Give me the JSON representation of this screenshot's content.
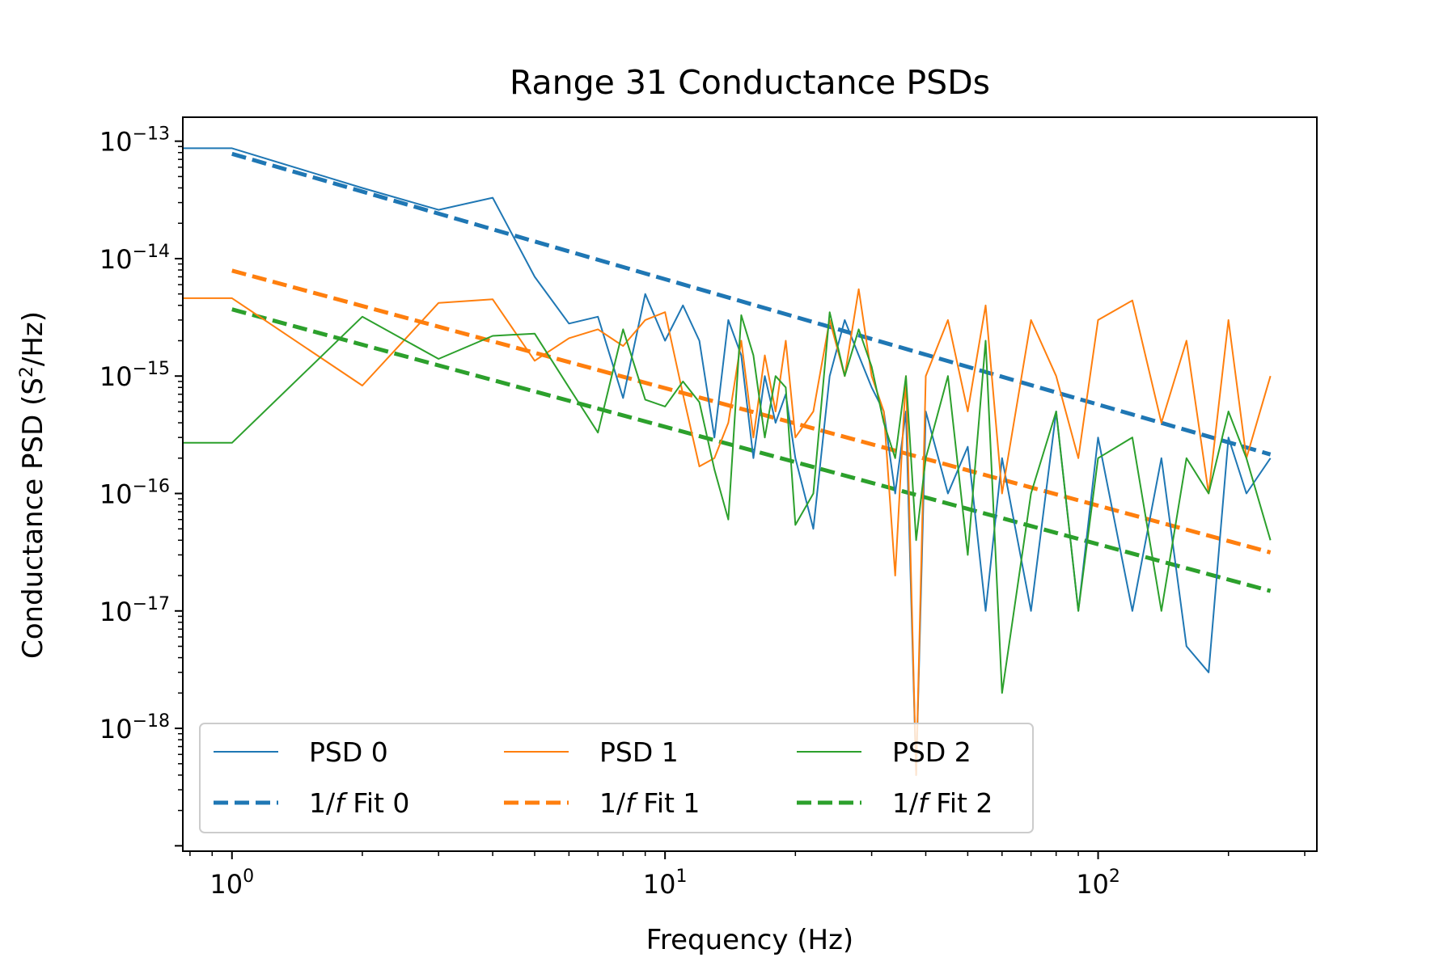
{
  "chart_data": {
    "type": "line",
    "title": "Range 31 Conductance PSDs",
    "xlabel": "Frequency (Hz)",
    "ylabel_base": "Conductance PSD (S",
    "ylabel_sup": "2",
    "ylabel_tail": "/Hz)",
    "x_scale": "log",
    "y_scale": "log",
    "xlim": [
      0.77,
      320
    ],
    "ylim": [
      9e-20,
      1.6e-13
    ],
    "x_ticks": [
      {
        "base": "10",
        "exp": "0",
        "value": 1
      },
      {
        "base": "10",
        "exp": "1",
        "value": 10
      },
      {
        "base": "10",
        "exp": "2",
        "value": 100
      }
    ],
    "y_ticks": [
      {
        "base": "10",
        "exp": "−13",
        "value": 1e-13
      },
      {
        "base": "10",
        "exp": "−14",
        "value": 1e-14
      },
      {
        "base": "10",
        "exp": "−15",
        "value": 1e-15
      },
      {
        "base": "10",
        "exp": "−16",
        "value": 1e-16
      },
      {
        "base": "10",
        "exp": "−17",
        "value": 1e-17
      },
      {
        "base": "10",
        "exp": "−18",
        "value": 1e-18
      }
    ],
    "legend": {
      "placement": "lower-left",
      "columns": 3
    },
    "series": [
      {
        "name": "PSD 0",
        "style": "solid",
        "color": "#1f77b4",
        "x": [
          0.77,
          1,
          2,
          3,
          4,
          5,
          6,
          7,
          8,
          9,
          10,
          11,
          12,
          13,
          14,
          15,
          16,
          17,
          18,
          19,
          20,
          22,
          24,
          26,
          28,
          30,
          32,
          34,
          36,
          38,
          40,
          45,
          50,
          55,
          60,
          70,
          80,
          90,
          100,
          120,
          140,
          160,
          180,
          200,
          220,
          250
        ],
        "y": [
          8.7e-14,
          8.7e-14,
          4e-14,
          2.6e-14,
          3.3e-14,
          7e-15,
          2.8e-15,
          3.2e-15,
          6.5e-16,
          5e-15,
          2e-15,
          4e-15,
          2e-15,
          3e-16,
          3e-15,
          1.5e-15,
          2e-16,
          1e-15,
          4e-16,
          7e-16,
          2e-16,
          5e-17,
          1e-15,
          3e-15,
          1.5e-15,
          8e-16,
          5e-16,
          1e-16,
          5e-16,
          4e-19,
          5e-16,
          1e-16,
          2.5e-16,
          1e-17,
          2e-16,
          1e-17,
          5e-16,
          1e-17,
          3e-16,
          1e-17,
          2e-16,
          5e-18,
          3e-18,
          3e-16,
          1e-16,
          2e-16
        ]
      },
      {
        "name": "PSD 1",
        "style": "solid",
        "color": "#ff7f0e",
        "x": [
          0.77,
          1,
          2,
          3,
          4,
          5,
          6,
          7,
          8,
          9,
          10,
          11,
          12,
          13,
          14,
          15,
          16,
          17,
          18,
          19,
          20,
          22,
          24,
          26,
          28,
          30,
          32,
          34,
          36,
          38,
          40,
          45,
          50,
          55,
          60,
          70,
          80,
          90,
          100,
          120,
          140,
          160,
          180,
          200,
          220,
          250
        ],
        "y": [
          4.6e-15,
          4.6e-15,
          8.3e-16,
          4.2e-15,
          4.5e-15,
          1.35e-15,
          2.1e-15,
          2.5e-15,
          1.8e-15,
          3e-15,
          3.5e-15,
          7e-16,
          1.7e-16,
          2e-16,
          4e-16,
          2e-15,
          3e-16,
          1.5e-15,
          5e-16,
          2e-15,
          3e-16,
          5e-16,
          3e-15,
          1e-15,
          5.5e-15,
          1e-15,
          5e-16,
          2e-17,
          1e-15,
          4e-19,
          1e-15,
          3e-15,
          5e-16,
          4e-15,
          1e-16,
          3e-15,
          1e-15,
          2e-16,
          3e-15,
          4.4e-15,
          4e-16,
          2e-15,
          1e-16,
          3e-15,
          2e-16,
          1e-15
        ]
      },
      {
        "name": "PSD 2",
        "style": "solid",
        "color": "#2ca02c",
        "x": [
          0.77,
          1,
          2,
          3,
          4,
          5,
          6,
          7,
          8,
          9,
          10,
          11,
          12,
          13,
          14,
          15,
          16,
          17,
          18,
          19,
          20,
          22,
          24,
          26,
          28,
          30,
          32,
          34,
          36,
          38,
          40,
          45,
          50,
          55,
          60,
          70,
          80,
          90,
          100,
          120,
          140,
          160,
          180,
          200,
          220,
          250
        ],
        "y": [
          2.7e-16,
          2.7e-16,
          3.2e-15,
          1.4e-15,
          2.2e-15,
          2.3e-15,
          8e-16,
          3.3e-16,
          2.5e-15,
          6.3e-16,
          5.5e-16,
          9e-16,
          6e-16,
          1.6e-16,
          6e-17,
          3.3e-15,
          1.5e-15,
          3e-16,
          1e-15,
          8e-16,
          5.4e-17,
          1e-16,
          3.5e-15,
          1e-15,
          2.5e-15,
          1.2e-15,
          4e-16,
          2e-16,
          1e-15,
          4e-17,
          2e-16,
          1e-15,
          3e-17,
          2e-15,
          2e-18,
          1e-16,
          5e-16,
          1e-17,
          2e-16,
          3e-16,
          1e-17,
          2e-16,
          1e-16,
          5e-16,
          2e-16,
          4e-17
        ]
      },
      {
        "name": "1/f Fit 0",
        "style": "dashed",
        "color": "#1f77b4",
        "x": [
          1,
          250
        ],
        "y": [
          7.8e-14,
          2.15e-16
        ]
      },
      {
        "name": "1/f Fit 1",
        "style": "dashed",
        "color": "#ff7f0e",
        "x": [
          1,
          250
        ],
        "y": [
          7.9e-15,
          3.15e-17
        ]
      },
      {
        "name": "1/f Fit 2",
        "style": "dashed",
        "color": "#2ca02c",
        "x": [
          1,
          250
        ],
        "y": [
          3.7e-15,
          1.48e-17
        ]
      }
    ]
  }
}
